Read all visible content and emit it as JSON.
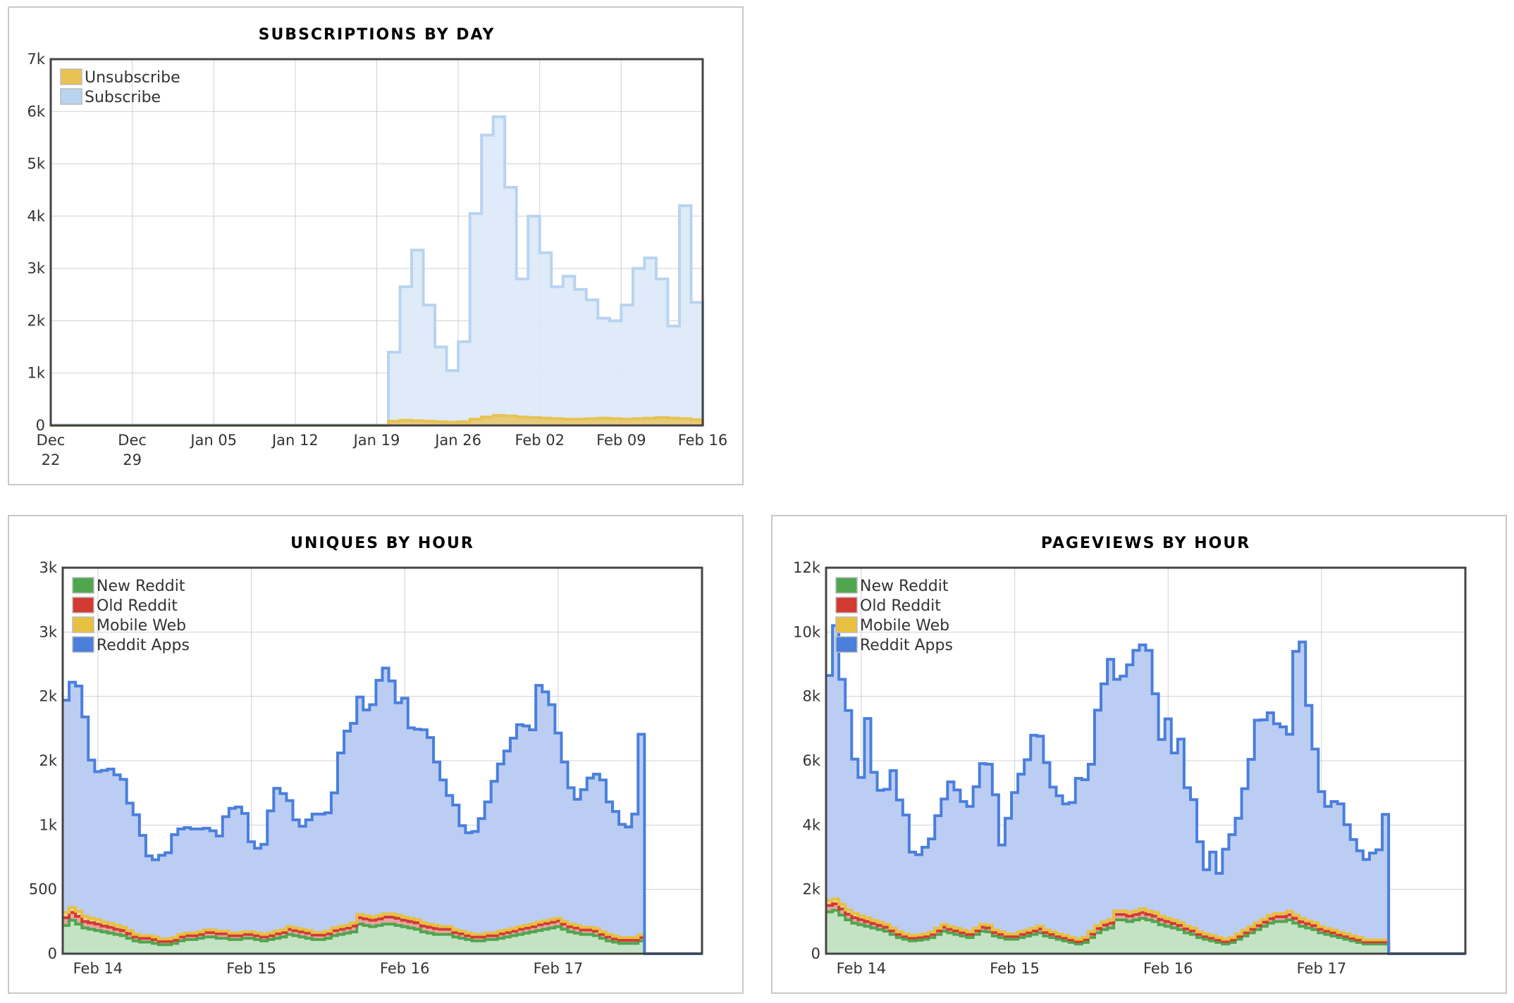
{
  "chart_data": [
    {
      "id": "subs",
      "type": "area",
      "title": "SUBSCRIPTIONS BY DAY",
      "ylim": [
        0,
        7000
      ],
      "yticks": [
        0,
        1000,
        2000,
        3000,
        4000,
        5000,
        6000,
        7000
      ],
      "ytick_labels": [
        "0",
        "1k",
        "2k",
        "3k",
        "4k",
        "5k",
        "6k",
        "7k"
      ],
      "xlim": [
        "2023-12-22",
        "2024-02-16"
      ],
      "xticks": [
        "2023-12-22",
        "2023-12-29",
        "2024-01-05",
        "2024-01-12",
        "2024-01-19",
        "2024-01-26",
        "2024-02-02",
        "2024-02-09",
        "2024-02-16"
      ],
      "xtick_labels": [
        [
          "Dec",
          "22"
        ],
        [
          "Dec",
          "29"
        ],
        [
          "Jan 05"
        ],
        [
          "Jan 12"
        ],
        [
          "Jan 19"
        ],
        [
          "Jan 26"
        ],
        [
          "Feb 02"
        ],
        [
          "Feb 09"
        ],
        [
          "Feb 16"
        ]
      ],
      "grid": true,
      "legend": "top-left",
      "step": true,
      "series": [
        {
          "name": "Unsubscribe",
          "color": "#e8c252",
          "fill": "#e8c252",
          "fill_opacity": 0.75,
          "x": [
            "2024-01-20",
            "2024-01-21",
            "2024-01-22",
            "2024-01-23",
            "2024-01-24",
            "2024-01-25",
            "2024-01-26",
            "2024-01-27",
            "2024-01-28",
            "2024-01-29",
            "2024-01-30",
            "2024-01-31",
            "2024-02-01",
            "2024-02-02",
            "2024-02-03",
            "2024-02-04",
            "2024-02-05",
            "2024-02-06",
            "2024-02-07",
            "2024-02-08",
            "2024-02-09",
            "2024-02-10",
            "2024-02-11",
            "2024-02-12",
            "2024-02-13",
            "2024-02-14",
            "2024-02-15"
          ],
          "values": [
            80,
            100,
            90,
            80,
            70,
            60,
            70,
            120,
            160,
            190,
            180,
            160,
            150,
            140,
            130,
            120,
            120,
            130,
            140,
            130,
            120,
            130,
            140,
            150,
            140,
            130,
            110
          ]
        },
        {
          "name": "Subscribe",
          "color": "#b8d4ef",
          "fill": "#dce9f8",
          "fill_opacity": 0.9,
          "x": [
            "2024-01-20",
            "2024-01-21",
            "2024-01-22",
            "2024-01-23",
            "2024-01-24",
            "2024-01-25",
            "2024-01-26",
            "2024-01-27",
            "2024-01-28",
            "2024-01-29",
            "2024-01-30",
            "2024-01-31",
            "2024-02-01",
            "2024-02-02",
            "2024-02-03",
            "2024-02-04",
            "2024-02-05",
            "2024-02-06",
            "2024-02-07",
            "2024-02-08",
            "2024-02-09",
            "2024-02-10",
            "2024-02-11",
            "2024-02-12",
            "2024-02-13",
            "2024-02-14",
            "2024-02-15"
          ],
          "values": [
            1400,
            2650,
            3350,
            2300,
            1500,
            1050,
            1600,
            4050,
            5550,
            5900,
            4550,
            2800,
            4000,
            3300,
            2650,
            2850,
            2600,
            2400,
            2050,
            2000,
            2300,
            3000,
            3200,
            2800,
            1900,
            4200,
            2350
          ]
        }
      ]
    },
    {
      "id": "uniques",
      "type": "area",
      "title": "UNIQUES BY HOUR",
      "ylim": [
        0,
        3000
      ],
      "yticks": [
        0,
        500,
        1000,
        1500,
        2000,
        2500,
        3000
      ],
      "ytick_labels": [
        "0",
        "500",
        "1k",
        "2k",
        "2k",
        "3k",
        "3k"
      ],
      "xlim": [
        0,
        100
      ],
      "xticks": [
        5.5,
        29.5,
        53.5,
        77.5
      ],
      "xtick_labels": [
        "Feb 14",
        "Feb 15",
        "Feb 16",
        "Feb 17"
      ],
      "grid": true,
      "legend": "top-left",
      "step": true,
      "series": [
        {
          "name": "New Reddit",
          "color": "#4fa64f",
          "fill": "#c4e3c4",
          "values": [
            220,
            260,
            230,
            200,
            190,
            180,
            170,
            160,
            150,
            140,
            120,
            100,
            90,
            90,
            80,
            70,
            70,
            80,
            100,
            110,
            110,
            120,
            130,
            130,
            120,
            120,
            110,
            110,
            120,
            120,
            110,
            100,
            110,
            120,
            130,
            150,
            140,
            130,
            120,
            110,
            110,
            120,
            140,
            150,
            160,
            170,
            230,
            220,
            210,
            220,
            230,
            230,
            220,
            210,
            200,
            190,
            170,
            160,
            150,
            150,
            150,
            130,
            120,
            110,
            100,
            100,
            110,
            110,
            120,
            130,
            140,
            150,
            160,
            170,
            180,
            190,
            200,
            210,
            190,
            170,
            160,
            150,
            150,
            140,
            120,
            100,
            90,
            80,
            80,
            80,
            100
          ]
        },
        {
          "name": "Old Reddit",
          "color": "#d23a32",
          "fill": "#e6a5a2",
          "values": [
            60,
            60,
            60,
            50,
            50,
            50,
            45,
            45,
            40,
            40,
            35,
            30,
            30,
            30,
            30,
            25,
            25,
            25,
            30,
            30,
            30,
            30,
            35,
            35,
            35,
            35,
            30,
            30,
            30,
            30,
            30,
            30,
            30,
            35,
            35,
            40,
            40,
            40,
            40,
            35,
            35,
            35,
            40,
            40,
            40,
            45,
            50,
            50,
            50,
            50,
            55,
            55,
            55,
            50,
            50,
            50,
            45,
            45,
            45,
            40,
            40,
            35,
            35,
            30,
            30,
            30,
            30,
            30,
            35,
            35,
            35,
            40,
            40,
            40,
            45,
            45,
            45,
            45,
            40,
            40,
            40,
            35,
            35,
            35,
            30,
            30,
            25,
            25,
            25,
            25,
            25
          ]
        },
        {
          "name": "Mobile Web",
          "color": "#e8c040",
          "fill": "#ead9a0",
          "values": [
            40,
            40,
            40,
            40,
            35,
            35,
            30,
            30,
            30,
            25,
            25,
            20,
            20,
            20,
            20,
            20,
            20,
            20,
            20,
            20,
            20,
            20,
            20,
            20,
            20,
            20,
            20,
            20,
            20,
            20,
            20,
            20,
            20,
            20,
            20,
            20,
            20,
            20,
            20,
            20,
            20,
            20,
            20,
            20,
            20,
            25,
            25,
            25,
            25,
            25,
            25,
            25,
            25,
            25,
            25,
            25,
            25,
            25,
            25,
            20,
            20,
            20,
            20,
            20,
            20,
            20,
            20,
            20,
            20,
            20,
            20,
            20,
            20,
            20,
            20,
            20,
            20,
            20,
            20,
            20,
            20,
            20,
            20,
            20,
            20,
            20,
            20,
            20,
            20,
            20,
            20
          ]
        },
        {
          "name": "Reddit Apps",
          "color": "#4a7fdc",
          "fill": "#bccdf3",
          "values": [
            1650,
            1750,
            1750,
            1550,
            1230,
            1150,
            1180,
            1200,
            1170,
            1150,
            990,
            930,
            780,
            620,
            600,
            650,
            670,
            800,
            820,
            820,
            810,
            800,
            790,
            770,
            740,
            890,
            970,
            980,
            920,
            700,
            660,
            700,
            950,
            1110,
            1060,
            980,
            840,
            800,
            860,
            920,
            920,
            920,
            1050,
            1350,
            1510,
            1550,
            1690,
            1600,
            1650,
            1830,
            1910,
            1810,
            1650,
            1700,
            1480,
            1480,
            1500,
            1450,
            1270,
            1140,
            1020,
            970,
            820,
            780,
            800,
            900,
            1020,
            1180,
            1300,
            1390,
            1480,
            1570,
            1550,
            1510,
            1840,
            1780,
            1670,
            1440,
            1240,
            1060,
            980,
            1070,
            1160,
            1200,
            1180,
            1030,
            970,
            880,
            860,
            960,
            1560
          ]
        }
      ]
    },
    {
      "id": "pageviews",
      "type": "area",
      "title": "PAGEVIEWS BY HOUR",
      "ylim": [
        0,
        12000
      ],
      "yticks": [
        0,
        2000,
        4000,
        6000,
        8000,
        10000,
        12000
      ],
      "ytick_labels": [
        "0",
        "2k",
        "4k",
        "6k",
        "8k",
        "10k",
        "12k"
      ],
      "xlim": [
        0,
        100
      ],
      "xticks": [
        5.5,
        29.5,
        53.5,
        77.5
      ],
      "xtick_labels": [
        "Feb 14",
        "Feb 15",
        "Feb 16",
        "Feb 17"
      ],
      "grid": true,
      "legend": "top-left",
      "step": true,
      "series": [
        {
          "name": "New Reddit",
          "color": "#4fa64f",
          "fill": "#c4e3c4",
          "values": [
            1300,
            1350,
            1200,
            1050,
            950,
            900,
            850,
            800,
            750,
            700,
            600,
            500,
            450,
            400,
            420,
            450,
            500,
            600,
            700,
            650,
            600,
            550,
            500,
            600,
            700,
            680,
            550,
            500,
            450,
            450,
            500,
            550,
            600,
            650,
            550,
            500,
            450,
            400,
            350,
            300,
            350,
            500,
            650,
            750,
            800,
            1050,
            1050,
            1000,
            1050,
            1100,
            1050,
            1000,
            900,
            850,
            800,
            750,
            650,
            600,
            500,
            450,
            400,
            350,
            300,
            350,
            450,
            550,
            650,
            750,
            850,
            950,
            1000,
            1000,
            1050,
            950,
            850,
            800,
            750,
            650,
            600,
            550,
            500,
            450,
            400,
            350,
            300,
            300,
            300,
            300
          ]
        },
        {
          "name": "Old Reddit",
          "color": "#d23a32",
          "fill": "#e6a5a2",
          "values": [
            200,
            200,
            190,
            180,
            170,
            160,
            150,
            140,
            130,
            120,
            110,
            100,
            90,
            90,
            90,
            90,
            100,
            110,
            120,
            110,
            110,
            100,
            100,
            110,
            120,
            120,
            110,
            100,
            90,
            90,
            100,
            100,
            110,
            120,
            110,
            100,
            90,
            90,
            80,
            80,
            90,
            110,
            130,
            140,
            150,
            170,
            170,
            170,
            170,
            180,
            170,
            170,
            160,
            150,
            140,
            130,
            120,
            110,
            100,
            90,
            90,
            80,
            80,
            80,
            90,
            100,
            110,
            120,
            130,
            140,
            150,
            150,
            160,
            150,
            140,
            130,
            120,
            110,
            100,
            100,
            90,
            90,
            80,
            80,
            70,
            70,
            70,
            70
          ]
        },
        {
          "name": "Mobile Web",
          "color": "#e8c040",
          "fill": "#ead9a0",
          "values": [
            150,
            150,
            140,
            130,
            130,
            120,
            110,
            100,
            100,
            90,
            80,
            80,
            70,
            70,
            70,
            70,
            70,
            80,
            90,
            80,
            80,
            80,
            80,
            80,
            90,
            90,
            80,
            80,
            70,
            70,
            80,
            80,
            80,
            90,
            80,
            80,
            70,
            70,
            70,
            70,
            70,
            80,
            90,
            100,
            100,
            110,
            110,
            110,
            110,
            120,
            110,
            110,
            100,
            100,
            100,
            90,
            90,
            80,
            80,
            70,
            70,
            70,
            70,
            70,
            70,
            80,
            80,
            90,
            90,
            100,
            100,
            100,
            110,
            100,
            100,
            90,
            90,
            80,
            80,
            80,
            70,
            70,
            70,
            70,
            60,
            60,
            60,
            60
          ]
        },
        {
          "name": "Reddit Apps",
          "color": "#4a7fdc",
          "fill": "#bccdf3",
          "values": [
            7000,
            8500,
            7000,
            6200,
            4800,
            4300,
            6200,
            4600,
            4100,
            4200,
            4900,
            4100,
            3700,
            2600,
            2500,
            2700,
            2900,
            3500,
            3900,
            4500,
            4300,
            4000,
            3900,
            4400,
            5000,
            5000,
            4200,
            2700,
            3600,
            4400,
            4900,
            5300,
            6000,
            5900,
            5200,
            4500,
            4300,
            4100,
            4200,
            5000,
            4900,
            5200,
            6700,
            7400,
            8100,
            7200,
            7300,
            7700,
            8100,
            8200,
            8100,
            6800,
            5500,
            6200,
            5200,
            5700,
            4300,
            4000,
            2800,
            2000,
            2600,
            2000,
            2800,
            3200,
            3600,
            4400,
            5200,
            6300,
            6200,
            6300,
            5900,
            5800,
            5500,
            8200,
            8600,
            6700,
            5400,
            4200,
            3800,
            4000,
            4000,
            3400,
            3000,
            2700,
            2500,
            2700,
            2800,
            3900,
            5200
          ]
        }
      ]
    }
  ]
}
